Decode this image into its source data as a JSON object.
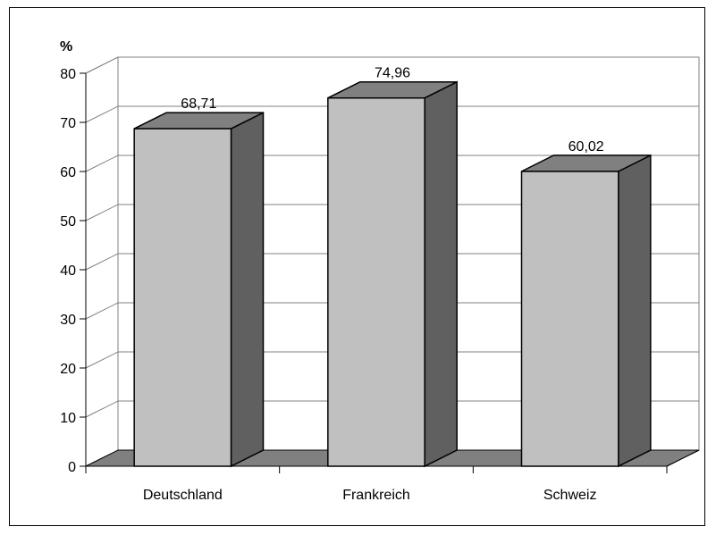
{
  "chart_data": {
    "type": "bar",
    "style": "3d-column",
    "unit_label": "%",
    "categories": [
      "Deutschland",
      "Frankreich",
      "Schweiz"
    ],
    "values": [
      68.71,
      74.96,
      60.02
    ],
    "value_labels": [
      "68,71",
      "74,96",
      "60,02"
    ],
    "ylim": [
      0,
      80
    ],
    "y_ticks": [
      0,
      10,
      20,
      30,
      40,
      50,
      60,
      70,
      80
    ],
    "grid": true,
    "legend": "none",
    "colors": {
      "bar_front": "#c0c0c0",
      "bar_side": "#606060",
      "bar_top": "#808080",
      "floor": "#808080",
      "back_wall": "#ffffff",
      "gridline": "#808080"
    }
  }
}
